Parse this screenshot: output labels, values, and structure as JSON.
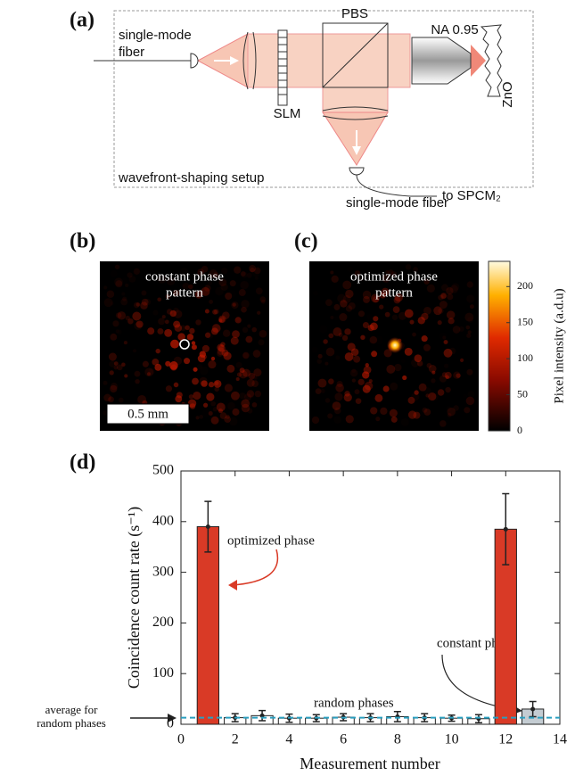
{
  "panel_a": {
    "label": "(a)",
    "fiber_in": [
      "single-mode",
      "fiber"
    ],
    "slm": "SLM",
    "pbs": "PBS",
    "objective": "NA 0.95",
    "sample": "ZnO",
    "box_title": "wavefront-shaping setup",
    "fiber_out": "single-mode fiber",
    "detector": "to SPCM₂"
  },
  "panel_b": {
    "label": "(b)",
    "caption": [
      "constant phase",
      "pattern"
    ],
    "scale_bar": "0.5 mm"
  },
  "panel_c": {
    "label": "(c)",
    "caption": [
      "optimized phase",
      "pattern"
    ],
    "colorbar_label": "Pixel intensity (a.d.u)",
    "colorbar_lim": [
      0,
      235
    ],
    "colorbar_ticks": [
      0,
      50,
      100,
      150,
      200
    ]
  },
  "chart_data": {
    "type": "bar",
    "label": "(d)",
    "xlabel": "Measurement number",
    "ylabel": "Coincidence count rate (s⁻¹)",
    "x": [
      1,
      2,
      3,
      4,
      5,
      6,
      7,
      8,
      9,
      10,
      11,
      12,
      13
    ],
    "values": [
      390,
      13,
      17,
      12,
      12,
      14,
      13,
      15,
      13,
      12,
      11,
      385,
      30
    ],
    "errors": [
      50,
      8,
      10,
      8,
      7,
      7,
      8,
      10,
      8,
      6,
      8,
      70,
      15
    ],
    "colors": [
      "#d93a26",
      "#ffffff",
      "#ffffff",
      "#ffffff",
      "#ffffff",
      "#ffffff",
      "#ffffff",
      "#ffffff",
      "#ffffff",
      "#ffffff",
      "#ffffff",
      "#d93a26",
      "#c4ccd2"
    ],
    "average": 13,
    "average_color": "#2a9fc0",
    "xlim": [
      0,
      14
    ],
    "xticks": [
      0,
      2,
      4,
      6,
      8,
      10,
      12,
      14
    ],
    "ylim": [
      0,
      500
    ],
    "yticks": [
      0,
      100,
      200,
      300,
      400,
      500
    ],
    "annotations": {
      "optimized": "optimized phase",
      "constant": "constant phase",
      "random": "random phases",
      "average": [
        "average for",
        "random phases"
      ]
    }
  }
}
